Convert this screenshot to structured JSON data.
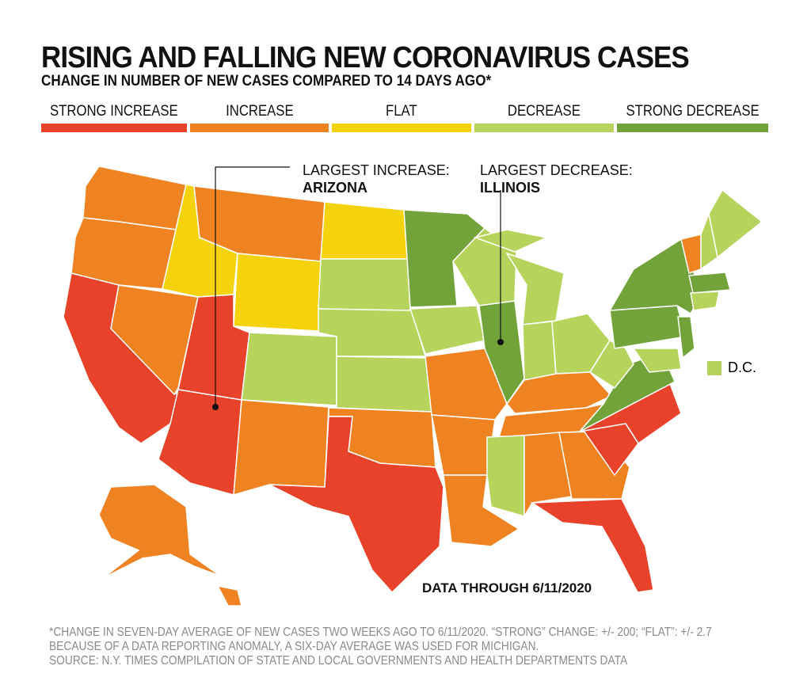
{
  "title": "RISING AND FALLING NEW CORONAVIRUS CASES",
  "subtitle": "CHANGE IN NUMBER OF NEW CASES COMPARED TO 14 DAYS AGO*",
  "legend": [
    {
      "label": "STRONG INCREASE",
      "color": "#e8422a"
    },
    {
      "label": "INCREASE",
      "color": "#f08321"
    },
    {
      "label": "FLAT",
      "color": "#f5d30c"
    },
    {
      "label": "DECREASE",
      "color": "#b6d45b"
    },
    {
      "label": "STRONG DECREASE",
      "color": "#72a33a"
    }
  ],
  "annotations": {
    "increase_label": "LARGEST INCREASE:",
    "increase_state": "ARIZONA",
    "decrease_label": "LARGEST DECREASE:",
    "decrease_state": "ILLINOIS"
  },
  "dc_label": "D.C.",
  "data_through": "DATA THROUGH 6/11/2020",
  "footnotes": [
    "*CHANGE IN SEVEN-DAY AVERAGE OF NEW CASES TWO WEEKS AGO TO 6/11/2020. “STRONG” CHANGE: +/- 200; “FLAT”: +/- 2.7",
    "BECAUSE OF A DATA REPORTING ANOMALY, A SIX-DAY AVERAGE WAS USED FOR MICHIGAN.",
    "SOURCE: N.Y. TIMES COMPILATION OF STATE AND LOCAL GOVERNMENTS AND HEALTH DEPARTMENTS DATA"
  ],
  "states": {
    "strong_increase": [
      "CA",
      "UT",
      "AZ",
      "TX",
      "NC",
      "SC",
      "FL"
    ],
    "increase": [
      "WA",
      "OR",
      "MT",
      "NV",
      "NM",
      "OK",
      "MO",
      "AR",
      "LA",
      "KY",
      "TN",
      "AL",
      "GA",
      "VT",
      "AK",
      "HI"
    ],
    "flat": [
      "ID",
      "WY",
      "ND"
    ],
    "decrease": [
      "SD",
      "NE",
      "CO",
      "KS",
      "IA",
      "WI",
      "MI",
      "IN",
      "OH",
      "WV",
      "MS",
      "ME",
      "NH",
      "CT",
      "RI",
      "DE",
      "MD",
      "DC"
    ],
    "strong_decrease": [
      "MN",
      "IL",
      "NY",
      "PA",
      "NJ",
      "VA",
      "MA"
    ]
  }
}
